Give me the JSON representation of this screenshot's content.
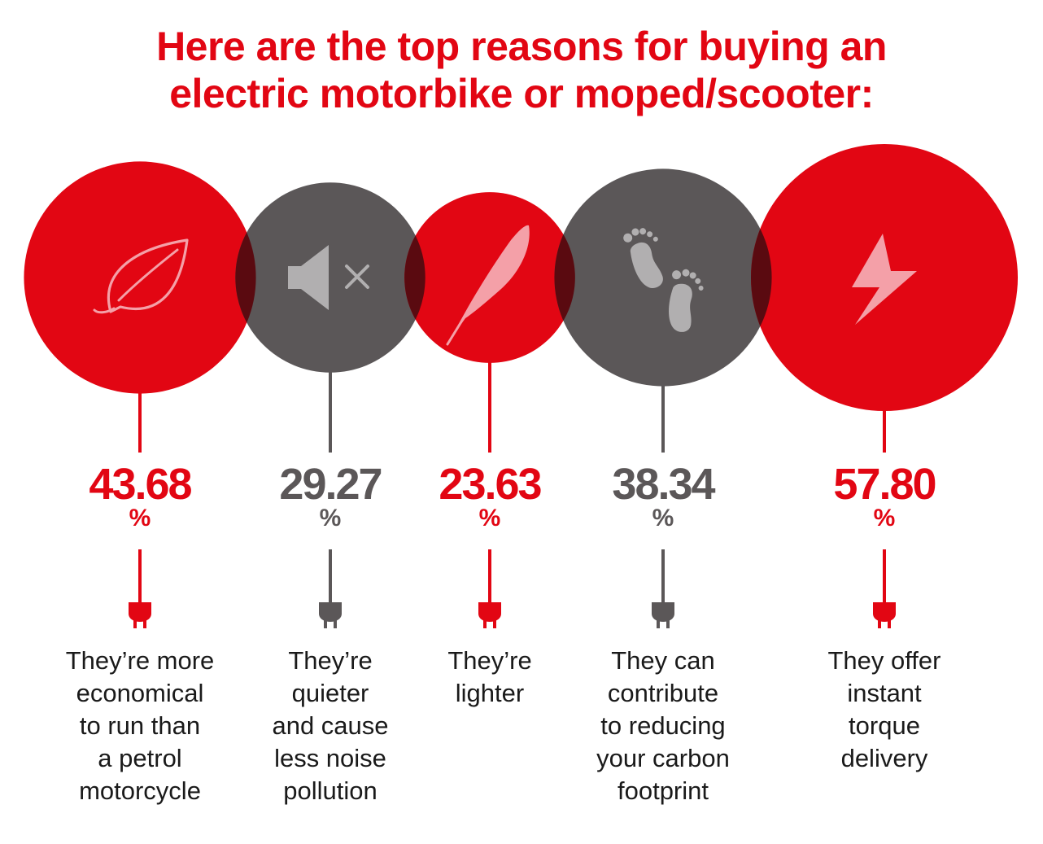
{
  "title": {
    "line1": "Here are the top reasons for buying an",
    "line2": "electric motorbike or moped/scooter:"
  },
  "colors": {
    "red": "#e20613",
    "grey": "#5b5758",
    "overlap": "#5a0a10",
    "icon_light": "#f4a0a8",
    "icon_grey": "#b1afb0"
  },
  "chart_data": {
    "type": "bubble",
    "unit": "%",
    "items": [
      {
        "value": 43.68,
        "label": "43.68",
        "unit": "%",
        "color": "red",
        "icon": "leaf-icon",
        "reason": [
          "They’re more",
          "economical",
          "to run than",
          "a petrol",
          "motorcycle"
        ]
      },
      {
        "value": 29.27,
        "label": "29.27",
        "unit": "%",
        "color": "grey",
        "icon": "muted-speaker-icon",
        "reason": [
          "They’re",
          "quieter",
          "and cause",
          "less noise",
          "pollution"
        ]
      },
      {
        "value": 23.63,
        "label": "23.63",
        "unit": "%",
        "color": "red",
        "icon": "feather-icon",
        "reason": [
          "They’re",
          "lighter"
        ]
      },
      {
        "value": 38.34,
        "label": "38.34",
        "unit": "%",
        "color": "grey",
        "icon": "footprints-icon",
        "reason": [
          "They can",
          "contribute",
          "to reducing",
          "your carbon",
          "footprint"
        ]
      },
      {
        "value": 57.8,
        "label": "57.80",
        "unit": "%",
        "color": "red",
        "icon": "lightning-bolt-icon",
        "reason": [
          "They offer",
          "instant",
          "torque",
          "delivery"
        ]
      }
    ]
  }
}
